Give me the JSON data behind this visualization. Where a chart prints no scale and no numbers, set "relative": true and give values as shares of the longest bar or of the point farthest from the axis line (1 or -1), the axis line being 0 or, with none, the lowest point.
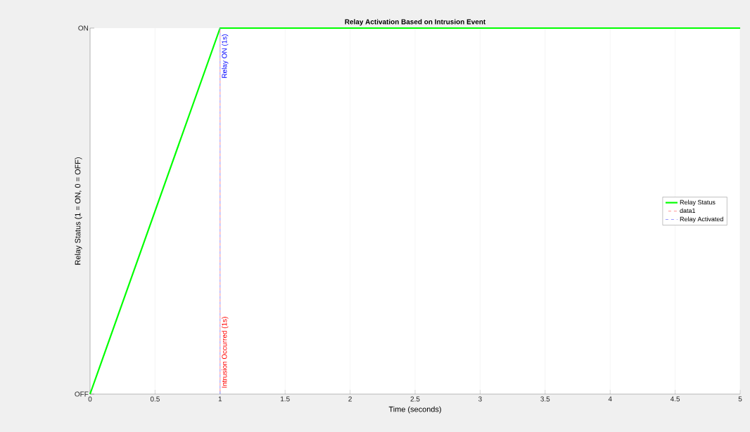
{
  "chart_data": {
    "type": "line",
    "title": "Relay Activation Based on Intrusion Event",
    "xlabel": "Time (seconds)",
    "ylabel": "Relay Status (1 = ON, 0 = OFF)",
    "relative": true,
    "series": [
      {
        "name": "Relay Status",
        "color": "#00ff00",
        "x": [
          0,
          1,
          5
        ],
        "values": [
          0,
          1,
          1
        ],
        "line_style": "solid"
      },
      {
        "name": "data1",
        "color": "#ff8c8c",
        "x": [
          1,
          1
        ],
        "values": [
          0,
          1
        ],
        "line_style": "dashed"
      },
      {
        "name": "Relay Activated",
        "color": "#8c8cff",
        "x": [
          1,
          1
        ],
        "values": [
          0,
          1
        ],
        "line_style": "dashed"
      }
    ],
    "annotations": [
      {
        "text": "Intrusion Occurred (1s)",
        "x": 1,
        "y": 0
      },
      {
        "text": "Relay ON (1s)",
        "x": 1,
        "y": 1
      },
      "OFF",
      "ON"
    ],
    "xlim": [
      0,
      5
    ],
    "xticks": [
      0,
      0.5,
      1,
      1.5,
      2,
      2.5,
      3,
      3.5,
      4,
      4.5,
      5
    ],
    "grid": "x",
    "legend": "right",
    "marker": "none"
  }
}
